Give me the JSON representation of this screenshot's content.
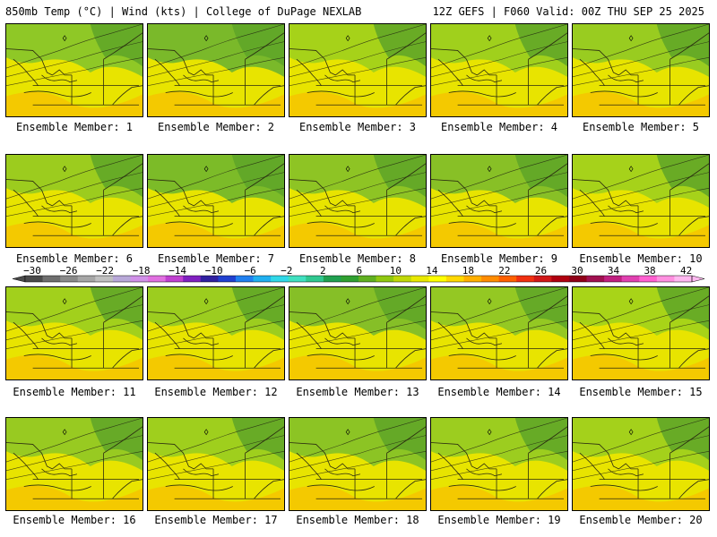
{
  "header": {
    "left": "850mb Temp (°C) | Wind (kts) | College of DuPage NEXLAB",
    "right": "12Z GEFS | F060 Valid: 00Z THU SEP 25 2025"
  },
  "colorbar": {
    "units": "°C",
    "labels": [
      "-30",
      "-26",
      "-22",
      "-18",
      "-14",
      "-10",
      "-6",
      "-2",
      "2",
      "6",
      "10",
      "14",
      "18",
      "22",
      "26",
      "30",
      "34",
      "38",
      "42"
    ],
    "colors": [
      "#4a4a4a",
      "#6e6e6e",
      "#8a8a8a",
      "#a6a6a6",
      "#c0c0c0",
      "#b8a8d8",
      "#d090e8",
      "#e070e0",
      "#c040d0",
      "#8020c0",
      "#3020a0",
      "#2040d0",
      "#2080f0",
      "#20b0f0",
      "#30d8e8",
      "#40e0c0",
      "#30c890",
      "#20a050",
      "#30a030",
      "#60b020",
      "#90c810",
      "#c0d808",
      "#e8e800",
      "#ffff00",
      "#ffd800",
      "#ffb000",
      "#ff8c00",
      "#ff6000",
      "#f03010",
      "#d01818",
      "#b00010",
      "#900018",
      "#a01050",
      "#c02080",
      "#e040b0",
      "#ff60d0",
      "#ff90e0",
      "#ffb8f0"
    ]
  },
  "panels": [
    {
      "caption": "Ensemble Member: 1",
      "tint": "#8fc826"
    },
    {
      "caption": "Ensemble Member: 2",
      "tint": "#7ab92a"
    },
    {
      "caption": "Ensemble Member: 3",
      "tint": "#a6d219"
    },
    {
      "caption": "Ensemble Member: 4",
      "tint": "#a0d01c"
    },
    {
      "caption": "Ensemble Member: 5",
      "tint": "#99cc20"
    },
    {
      "caption": "Ensemble Member: 6",
      "tint": "#9ccc1e"
    },
    {
      "caption": "Ensemble Member: 7",
      "tint": "#7cbb28"
    },
    {
      "caption": "Ensemble Member: 8",
      "tint": "#8ec424"
    },
    {
      "caption": "Ensemble Member: 9",
      "tint": "#88c026"
    },
    {
      "caption": "Ensemble Member: 10",
      "tint": "#a6d21a"
    },
    {
      "caption": "Ensemble Member: 11",
      "tint": "#a2d01c"
    },
    {
      "caption": "Ensemble Member: 12",
      "tint": "#9ccd1f"
    },
    {
      "caption": "Ensemble Member: 13",
      "tint": "#86bf27"
    },
    {
      "caption": "Ensemble Member: 14",
      "tint": "#94c823"
    },
    {
      "caption": "Ensemble Member: 15",
      "tint": "#a8d418"
    },
    {
      "caption": "Ensemble Member: 16",
      "tint": "#98ca21"
    },
    {
      "caption": "Ensemble Member: 17",
      "tint": "#9fcf1d"
    },
    {
      "caption": "Ensemble Member: 18",
      "tint": "#8cc424"
    },
    {
      "caption": "Ensemble Member: 19",
      "tint": "#9ccd1f"
    },
    {
      "caption": "Ensemble Member: 20",
      "tint": "#a4d11b"
    }
  ]
}
